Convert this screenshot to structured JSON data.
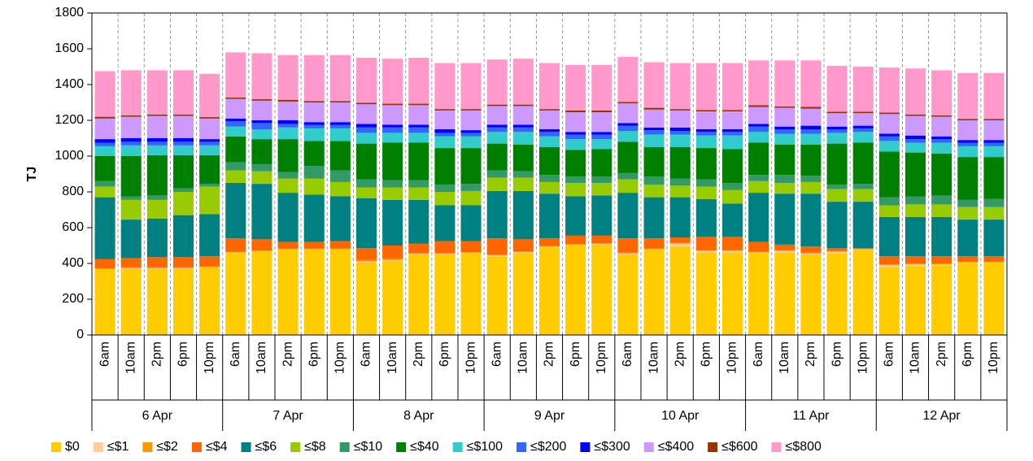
{
  "chart_data": {
    "type": "stacked_bar",
    "y_label": "TJ",
    "categories": [
      "6am",
      "10am",
      "2pm",
      "6pm",
      "10pm",
      "6am",
      "10am",
      "2pm",
      "6pm",
      "10pm",
      "6am",
      "10am",
      "2pm",
      "6pm",
      "10pm",
      "6am",
      "10am",
      "2pm",
      "6pm",
      "10pm",
      "6am",
      "10am",
      "2pm",
      "6pm",
      "10pm",
      "6am",
      "10am",
      "2pm",
      "6pm",
      "10pm",
      "6am",
      "10am",
      "2pm",
      "6pm",
      "10pm"
    ],
    "group_labels": [
      "6 Apr",
      "7 Apr",
      "8 Apr",
      "9 Apr",
      "10 Apr",
      "11 Apr",
      "12 Apr"
    ],
    "ylim": [
      0,
      1800
    ],
    "yticks": [
      0,
      200,
      400,
      600,
      800,
      1000,
      1200,
      1400,
      1600,
      1800
    ],
    "grid": true,
    "legend": "bottom",
    "series": [
      {
        "name": "$0",
        "color": "#ffcc00",
        "values": [
          365,
          370,
          370,
          370,
          375,
          455,
          465,
          475,
          475,
          475,
          405,
          415,
          450,
          450,
          455,
          440,
          460,
          490,
          500,
          505,
          450,
          475,
          495,
          460,
          460,
          455,
          460,
          450,
          455,
          475,
          380,
          385,
          390,
          400,
          400
        ]
      },
      {
        "name": "≤$1",
        "color": "#ffcc99",
        "values": [
          3,
          3,
          3,
          3,
          3,
          5,
          3,
          3,
          3,
          3,
          5,
          3,
          3,
          3,
          3,
          5,
          3,
          3,
          3,
          3,
          5,
          3,
          15,
          10,
          10,
          5,
          10,
          5,
          10,
          3,
          10,
          10,
          5,
          5,
          5
        ]
      },
      {
        "name": "≤$2",
        "color": "#ff9900",
        "values": [
          5,
          5,
          5,
          5,
          5,
          5,
          5,
          5,
          5,
          5,
          10,
          10,
          5,
          5,
          5,
          5,
          5,
          5,
          5,
          5,
          5,
          5,
          5,
          5,
          5,
          5,
          5,
          5,
          5,
          3,
          5,
          5,
          5,
          5,
          5
        ]
      },
      {
        "name": "≤$4",
        "color": "#ff6600",
        "values": [
          52,
          52,
          57,
          57,
          57,
          75,
          62,
          37,
          37,
          42,
          65,
          72,
          52,
          67,
          62,
          90,
          67,
          42,
          47,
          42,
          80,
          57,
          30,
          75,
          75,
          55,
          30,
          35,
          15,
          4,
          45,
          40,
          40,
          30,
          30
        ]
      },
      {
        "name": "≤$6",
        "color": "#008080",
        "values": [
          345,
          215,
          215,
          235,
          235,
          310,
          310,
          275,
          265,
          250,
          280,
          255,
          245,
          200,
          200,
          265,
          270,
          250,
          220,
          225,
          255,
          230,
          225,
          210,
          185,
          275,
          285,
          295,
          260,
          260,
          220,
          220,
          220,
          205,
          205
        ]
      },
      {
        "name": "≤$8",
        "color": "#99cc00",
        "values": [
          60,
          110,
          105,
          130,
          155,
          70,
          70,
          80,
          90,
          80,
          60,
          70,
          70,
          75,
          80,
          75,
          75,
          65,
          75,
          70,
          75,
          70,
          65,
          70,
          75,
          65,
          60,
          65,
          70,
          70,
          65,
          70,
          70,
          70,
          70
        ]
      },
      {
        "name": "≤$10",
        "color": "#339966",
        "values": [
          30,
          20,
          25,
          20,
          15,
          45,
          40,
          35,
          70,
          65,
          45,
          40,
          40,
          40,
          40,
          40,
          35,
          40,
          35,
          35,
          35,
          45,
          40,
          40,
          40,
          35,
          45,
          35,
          25,
          30,
          45,
          45,
          50,
          40,
          45
        ]
      },
      {
        "name": "≤$40",
        "color": "#008000",
        "values": [
          140,
          225,
          225,
          185,
          160,
          145,
          140,
          185,
          140,
          165,
          200,
          210,
          210,
          205,
          200,
          150,
          150,
          155,
          150,
          155,
          175,
          165,
          175,
          175,
          190,
          180,
          170,
          175,
          230,
          230,
          255,
          245,
          235,
          240,
          235
        ]
      },
      {
        "name": "≤$100",
        "color": "#33cccc",
        "values": [
          55,
          60,
          55,
          55,
          55,
          55,
          55,
          65,
          70,
          70,
          60,
          55,
          55,
          65,
          65,
          65,
          70,
          60,
          60,
          55,
          60,
          70,
          70,
          70,
          75,
          60,
          60,
          60,
          60,
          60,
          60,
          55,
          60,
          60,
          60
        ]
      },
      {
        "name": "≤$200",
        "color": "#3366ff",
        "values": [
          20,
          20,
          20,
          20,
          20,
          30,
          35,
          20,
          20,
          20,
          30,
          30,
          30,
          20,
          20,
          25,
          25,
          25,
          25,
          25,
          30,
          25,
          20,
          20,
          20,
          30,
          25,
          25,
          20,
          20,
          25,
          20,
          20,
          20,
          20
        ]
      },
      {
        "name": "≤$300",
        "color": "#0000ff",
        "values": [
          20,
          20,
          20,
          20,
          15,
          15,
          15,
          20,
          15,
          15,
          20,
          15,
          15,
          20,
          15,
          15,
          15,
          15,
          15,
          15,
          15,
          15,
          20,
          15,
          15,
          15,
          15,
          20,
          15,
          15,
          15,
          20,
          15,
          15,
          15
        ]
      },
      {
        "name": "≤$400",
        "color": "#cc99ff",
        "values": [
          115,
          120,
          125,
          125,
          115,
          110,
          110,
          105,
          110,
          110,
          110,
          110,
          110,
          105,
          110,
          105,
          105,
          105,
          110,
          110,
          110,
          100,
          95,
          100,
          100,
          95,
          105,
          95,
          75,
          70,
          110,
          110,
          110,
          110,
          110
        ]
      },
      {
        "name": "≤$600",
        "color": "#993300",
        "values": [
          10,
          8,
          8,
          8,
          8,
          8,
          8,
          10,
          8,
          8,
          8,
          8,
          8,
          8,
          8,
          8,
          8,
          8,
          10,
          10,
          8,
          10,
          8,
          8,
          8,
          10,
          8,
          10,
          8,
          8,
          8,
          8,
          8,
          8,
          8
        ]
      },
      {
        "name": "≤$800",
        "color": "#ff99cc",
        "values": [
          255,
          252,
          247,
          247,
          242,
          252,
          257,
          250,
          257,
          257,
          252,
          252,
          257,
          257,
          257,
          252,
          257,
          257,
          255,
          255,
          252,
          255,
          257,
          262,
          262,
          250,
          257,
          260,
          257,
          252,
          252,
          257,
          252,
          257,
          257
        ]
      }
    ]
  }
}
